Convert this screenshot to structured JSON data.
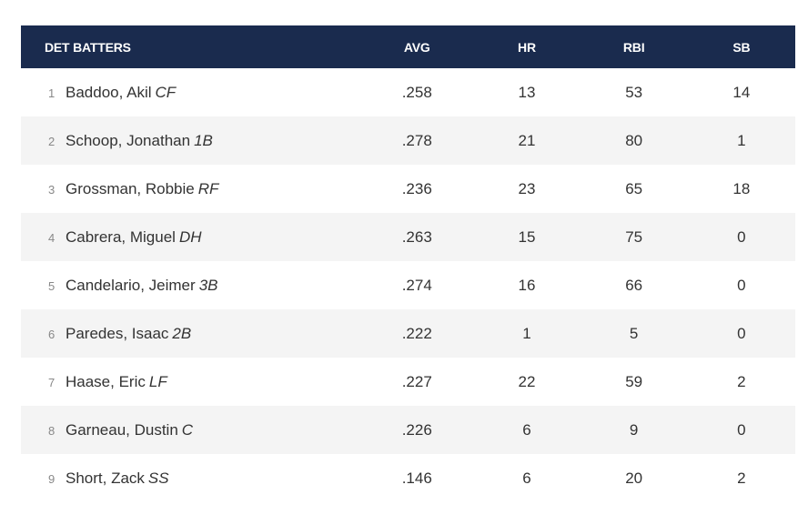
{
  "header": {
    "team_label": "DET BATTERS",
    "avg_label": "AVG",
    "hr_label": "HR",
    "rbi_label": "RBI",
    "sb_label": "SB"
  },
  "batters": [
    {
      "order": "1",
      "name": "Baddoo, Akil",
      "pos": "CF",
      "avg": ".258",
      "hr": "13",
      "rbi": "53",
      "sb": "14"
    },
    {
      "order": "2",
      "name": "Schoop, Jonathan",
      "pos": "1B",
      "avg": ".278",
      "hr": "21",
      "rbi": "80",
      "sb": "1"
    },
    {
      "order": "3",
      "name": "Grossman, Robbie",
      "pos": "RF",
      "avg": ".236",
      "hr": "23",
      "rbi": "65",
      "sb": "18"
    },
    {
      "order": "4",
      "name": "Cabrera, Miguel",
      "pos": "DH",
      "avg": ".263",
      "hr": "15",
      "rbi": "75",
      "sb": "0"
    },
    {
      "order": "5",
      "name": "Candelario, Jeimer",
      "pos": "3B",
      "avg": ".274",
      "hr": "16",
      "rbi": "66",
      "sb": "0"
    },
    {
      "order": "6",
      "name": "Paredes, Isaac",
      "pos": "2B",
      "avg": ".222",
      "hr": "1",
      "rbi": "5",
      "sb": "0"
    },
    {
      "order": "7",
      "name": "Haase, Eric",
      "pos": "LF",
      "avg": ".227",
      "hr": "22",
      "rbi": "59",
      "sb": "2"
    },
    {
      "order": "8",
      "name": "Garneau, Dustin",
      "pos": "C",
      "avg": ".226",
      "hr": "6",
      "rbi": "9",
      "sb": "0"
    },
    {
      "order": "9",
      "name": "Short, Zack",
      "pos": "SS",
      "avg": ".146",
      "hr": "6",
      "rbi": "20",
      "sb": "2"
    }
  ],
  "colors": {
    "header_bg": "#1a2b4e",
    "header_text": "#ffffff",
    "row_alt_bg": "#f4f4f4",
    "text": "#333333"
  }
}
